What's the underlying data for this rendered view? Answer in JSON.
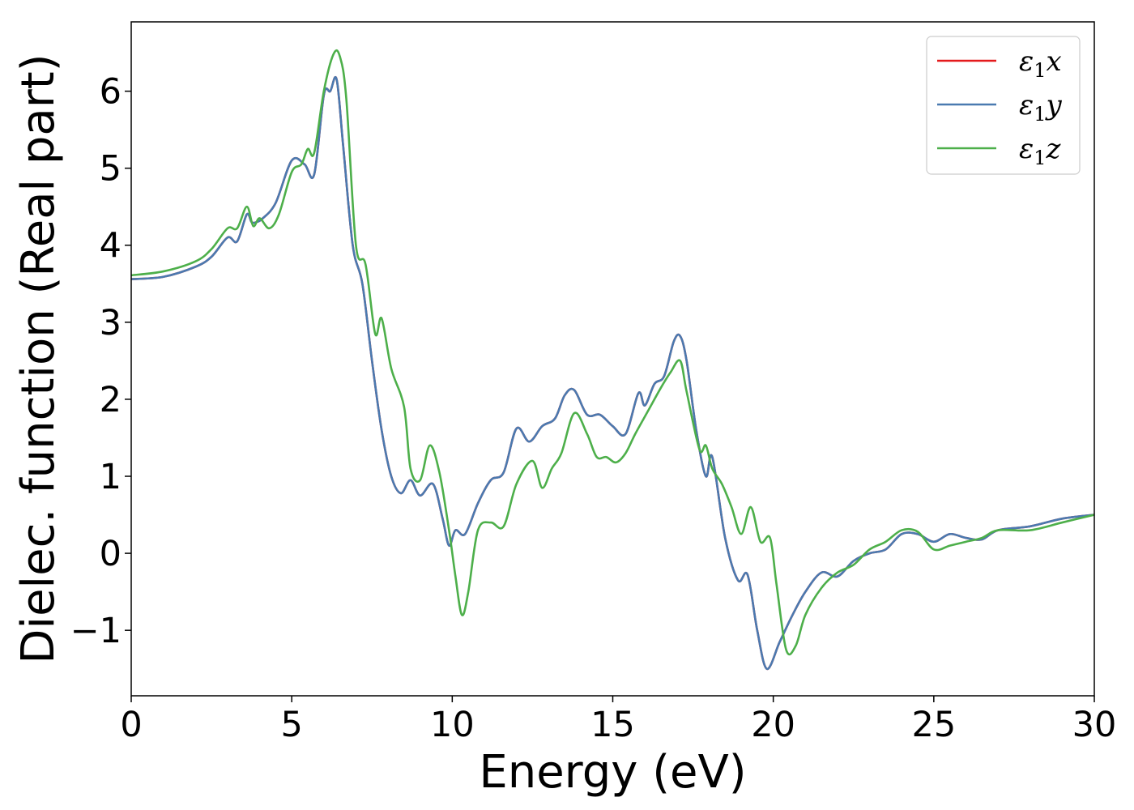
{
  "chart_data": {
    "type": "line",
    "xlabel": "Energy (eV)",
    "ylabel": "Dielec. function (Real part)",
    "xlim": [
      0,
      30
    ],
    "ylim": [
      -1.85,
      6.9
    ],
    "xticks": [
      0,
      5,
      10,
      15,
      20,
      25,
      30
    ],
    "xtick_labels": [
      "0",
      "5",
      "10",
      "15",
      "20",
      "25",
      "30"
    ],
    "yticks": [
      -1,
      0,
      1,
      2,
      3,
      4,
      5,
      6
    ],
    "ytick_labels": [
      "−1",
      "0",
      "1",
      "2",
      "3",
      "4",
      "5",
      "6"
    ],
    "grid": false,
    "legend_position": "top-right",
    "series": [
      {
        "name": "ε₁x",
        "legend_main": "ε",
        "legend_sub": "1",
        "legend_var": "x",
        "color": "#e41a1c",
        "x": [
          0,
          1,
          2,
          2.5,
          3,
          3.3,
          3.6,
          3.75,
          3.9,
          4.1,
          4.5,
          5,
          5.4,
          5.7,
          6,
          6.2,
          6.4,
          6.6,
          6.9,
          7.2,
          7.5,
          7.8,
          8.1,
          8.4,
          8.7,
          9,
          9.4,
          9.7,
          9.9,
          10.1,
          10.4,
          10.8,
          11.2,
          11.6,
          12,
          12.4,
          12.8,
          13.2,
          13.5,
          13.8,
          14.2,
          14.6,
          15,
          15.4,
          15.8,
          16,
          16.3,
          16.6,
          16.9,
          17.1,
          17.3,
          17.6,
          17.9,
          18.1,
          18.5,
          18.9,
          19.2,
          19.5,
          19.8,
          20.2,
          20.6,
          21,
          21.5,
          22,
          22.5,
          23,
          23.5,
          24,
          24.5,
          25,
          25.5,
          26,
          26.5,
          27,
          28,
          29,
          30
        ],
        "y": [
          3.56,
          3.59,
          3.72,
          3.85,
          4.1,
          4.05,
          4.4,
          4.3,
          4.3,
          4.35,
          4.55,
          5.1,
          5.05,
          4.92,
          5.95,
          6.0,
          6.15,
          5.3,
          4.0,
          3.5,
          2.5,
          1.6,
          1.0,
          0.78,
          0.95,
          0.75,
          0.9,
          0.45,
          0.1,
          0.3,
          0.25,
          0.65,
          0.95,
          1.05,
          1.62,
          1.45,
          1.65,
          1.75,
          2.05,
          2.12,
          1.8,
          1.8,
          1.65,
          1.55,
          2.08,
          1.92,
          2.2,
          2.3,
          2.75,
          2.82,
          2.5,
          1.6,
          1.0,
          1.25,
          0.2,
          -0.35,
          -0.28,
          -1.0,
          -1.5,
          -1.15,
          -0.8,
          -0.5,
          -0.25,
          -0.3,
          -0.1,
          0.0,
          0.05,
          0.25,
          0.25,
          0.15,
          0.25,
          0.2,
          0.18,
          0.3,
          0.35,
          0.45,
          0.5
        ]
      },
      {
        "name": "ε₁y",
        "legend_main": "ε",
        "legend_sub": "1",
        "legend_var": "y",
        "color": "#4a7ab0",
        "x": [
          0,
          1,
          2,
          2.5,
          3,
          3.3,
          3.6,
          3.75,
          3.9,
          4.1,
          4.5,
          5,
          5.4,
          5.7,
          6,
          6.2,
          6.4,
          6.6,
          6.9,
          7.2,
          7.5,
          7.8,
          8.1,
          8.4,
          8.7,
          9,
          9.4,
          9.7,
          9.9,
          10.1,
          10.4,
          10.8,
          11.2,
          11.6,
          12,
          12.4,
          12.8,
          13.2,
          13.5,
          13.8,
          14.2,
          14.6,
          15,
          15.4,
          15.8,
          16,
          16.3,
          16.6,
          16.9,
          17.1,
          17.3,
          17.6,
          17.9,
          18.1,
          18.5,
          18.9,
          19.2,
          19.5,
          19.8,
          20.2,
          20.6,
          21,
          21.5,
          22,
          22.5,
          23,
          23.5,
          24,
          24.5,
          25,
          25.5,
          26,
          26.5,
          27,
          28,
          29,
          30
        ],
        "y": [
          3.56,
          3.59,
          3.72,
          3.85,
          4.1,
          4.05,
          4.4,
          4.3,
          4.3,
          4.35,
          4.55,
          5.1,
          5.05,
          4.92,
          5.95,
          6.0,
          6.15,
          5.3,
          4.0,
          3.5,
          2.5,
          1.6,
          1.0,
          0.78,
          0.95,
          0.75,
          0.9,
          0.45,
          0.1,
          0.3,
          0.25,
          0.65,
          0.95,
          1.05,
          1.62,
          1.45,
          1.65,
          1.75,
          2.05,
          2.12,
          1.8,
          1.8,
          1.65,
          1.55,
          2.08,
          1.92,
          2.2,
          2.3,
          2.75,
          2.82,
          2.5,
          1.6,
          1.0,
          1.25,
          0.2,
          -0.35,
          -0.28,
          -1.0,
          -1.5,
          -1.15,
          -0.8,
          -0.5,
          -0.25,
          -0.3,
          -0.1,
          0.0,
          0.05,
          0.25,
          0.25,
          0.15,
          0.25,
          0.2,
          0.18,
          0.3,
          0.35,
          0.45,
          0.5
        ]
      },
      {
        "name": "ε₁z",
        "legend_main": "ε",
        "legend_sub": "1",
        "legend_var": "z",
        "color": "#4daf4a",
        "x": [
          0,
          1,
          2,
          2.5,
          3,
          3.3,
          3.6,
          3.8,
          4.0,
          4.3,
          4.6,
          5,
          5.3,
          5.5,
          5.7,
          6,
          6.3,
          6.5,
          6.7,
          7.0,
          7.3,
          7.6,
          7.8,
          8.1,
          8.5,
          8.7,
          9,
          9.3,
          9.6,
          9.9,
          10.1,
          10.3,
          10.5,
          10.8,
          11.2,
          11.6,
          12,
          12.5,
          12.8,
          13.1,
          13.4,
          13.8,
          14.2,
          14.5,
          14.8,
          15.1,
          15.4,
          15.7,
          16.1,
          16.5,
          16.8,
          17.1,
          17.3,
          17.7,
          17.9,
          18.1,
          18.4,
          18.7,
          19.0,
          19.3,
          19.6,
          19.9,
          20.1,
          20.4,
          20.7,
          21,
          21.5,
          22,
          22.5,
          23,
          23.5,
          24,
          24.5,
          25,
          25.5,
          26,
          26.5,
          27,
          28,
          29,
          30
        ],
        "y": [
          3.61,
          3.66,
          3.79,
          3.95,
          4.22,
          4.22,
          4.5,
          4.25,
          4.35,
          4.22,
          4.4,
          4.95,
          5.05,
          5.25,
          5.2,
          6.0,
          6.48,
          6.45,
          5.9,
          4.0,
          3.75,
          2.85,
          3.05,
          2.4,
          1.9,
          1.1,
          0.95,
          1.4,
          1.05,
          0.3,
          -0.3,
          -0.8,
          -0.5,
          0.3,
          0.4,
          0.35,
          0.9,
          1.2,
          0.85,
          1.1,
          1.3,
          1.82,
          1.55,
          1.25,
          1.25,
          1.18,
          1.3,
          1.55,
          1.85,
          2.15,
          2.35,
          2.5,
          2.1,
          1.35,
          1.4,
          1.1,
          0.9,
          0.6,
          0.25,
          0.6,
          0.15,
          0.2,
          -0.4,
          -1.25,
          -1.2,
          -0.8,
          -0.45,
          -0.25,
          -0.15,
          0.05,
          0.15,
          0.3,
          0.28,
          0.05,
          0.1,
          0.15,
          0.2,
          0.3,
          0.3,
          0.4,
          0.5
        ]
      }
    ]
  }
}
